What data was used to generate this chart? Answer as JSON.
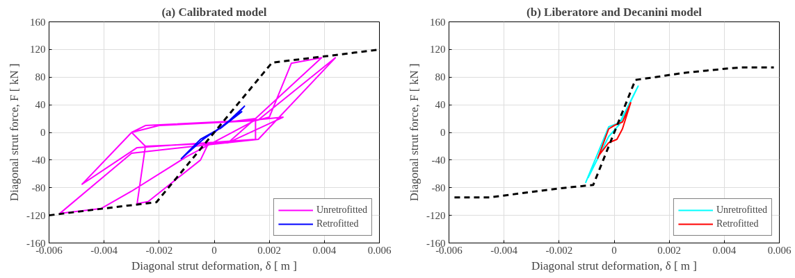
{
  "chart_data": [
    {
      "type": "line",
      "title": "(a) Calibrated model",
      "xlabel": "Diagonal strut deformation, δ [ m ]",
      "ylabel": "Diagonal strut force, F [ kN ]",
      "xlim": [
        -0.006,
        0.006
      ],
      "xticks": [
        -0.006,
        -0.004,
        -0.002,
        0,
        0.002,
        0.004,
        0.006
      ],
      "ylim": [
        -160,
        160
      ],
      "yticks": [
        -160,
        -120,
        -80,
        -40,
        0,
        40,
        80,
        120,
        160
      ],
      "grid": true,
      "legend": "bottom right",
      "series": [
        {
          "name": "Unretrofitted",
          "color": "#ff00ff",
          "x": [
            0,
            0.0005,
            0.0015,
            0.0005,
            -0.0025,
            -0.003,
            -0.002,
            0.0015,
            0.002,
            0.0028,
            0.0039,
            0.0015,
            0.0015,
            -0.0028,
            -0.0048,
            -0.003,
            -0.0025,
            0.0016,
            0.0044,
            0.0016,
            -0.003,
            -0.0056,
            -0.0041,
            -0.003,
            -0.001,
            0.0015,
            0.0025,
            0.0005,
            -0.0025,
            -0.0028,
            -0.0024,
            -0.0005,
            -0.0002
          ],
          "values": [
            0,
            15,
            20,
            -15,
            -20,
            0,
            10,
            17,
            22,
            100,
            108,
            20,
            -10,
            -22,
            -75,
            0,
            10,
            18,
            108,
            -10,
            -30,
            -117,
            -110,
            -85,
            -35,
            18,
            22,
            -15,
            -20,
            -103,
            -100,
            -40,
            -15
          ]
        },
        {
          "name": "Retrofitted",
          "color": "#0000ff",
          "x": [
            0,
            0.0008,
            0.0011,
            0.0003,
            -0.0005,
            -0.0012,
            -0.0004,
            0.0004,
            0.001,
            0.0002
          ],
          "values": [
            0,
            25,
            38,
            8,
            -10,
            -38,
            -10,
            12,
            30,
            5
          ]
        },
        {
          "name": null,
          "color": "#000000",
          "line_style": "dashed",
          "x": [
            -0.006,
            -0.004,
            -0.0021,
            0.0021,
            0.004,
            0.006
          ],
          "values": [
            -120,
            -110,
            -101,
            101,
            110,
            120
          ]
        }
      ]
    },
    {
      "type": "line",
      "title": "(b) Liberatore and Decanini model",
      "xlabel": "Diagonal strut deformation, δ [ m ]",
      "ylabel": "Diagonal strut force, F [ kN ]",
      "xlim": [
        -0.006,
        0.006
      ],
      "xticks": [
        -0.006,
        -0.004,
        -0.002,
        0,
        0.002,
        0.004,
        0.006
      ],
      "ylim": [
        -160,
        160
      ],
      "yticks": [
        -160,
        -120,
        -80,
        -40,
        0,
        40,
        80,
        120,
        160
      ],
      "grid": true,
      "legend": "bottom right",
      "series": [
        {
          "name": "Unretrofitted",
          "color": "#00ffff",
          "x": [
            -0.00104,
            -0.0002,
            0.0002,
            0.00087,
            0.0002,
            -0.0002,
            -0.00095
          ],
          "values": [
            -73,
            8,
            14,
            67,
            12,
            -6,
            -66
          ]
        },
        {
          "name": "Retrofitted",
          "color": "#ff0000",
          "x": [
            -0.0006,
            -0.0002,
            0,
            0.0003,
            0.0006,
            0.0003,
            0.0001,
            -0.0002,
            -0.00055
          ],
          "values": [
            -38,
            5,
            10,
            15,
            43,
            5,
            -10,
            -15,
            -33
          ]
        },
        {
          "name": null,
          "color": "#000000",
          "line_style": "dashed",
          "x": [
            -0.0058,
            -0.0045,
            -0.003,
            -0.002,
            -0.00076,
            0.00077,
            0.0015,
            0.0025,
            0.004,
            0.0046,
            0.0058
          ],
          "values": [
            -94,
            -94,
            -86,
            -81,
            -76,
            76,
            80,
            86,
            92,
            94,
            94
          ]
        }
      ]
    }
  ]
}
